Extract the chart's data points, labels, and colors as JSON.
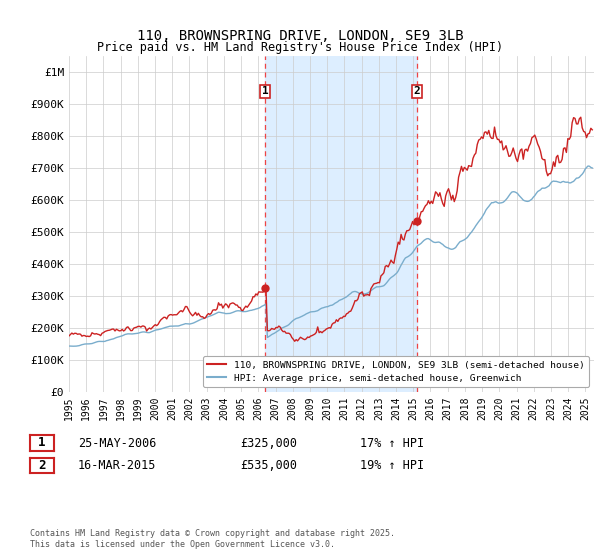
{
  "title": "110, BROWNSPRING DRIVE, LONDON, SE9 3LB",
  "subtitle": "Price paid vs. HM Land Registry's House Price Index (HPI)",
  "xlim_start": 1995.0,
  "xlim_end": 2025.5,
  "ylim": [
    0,
    1050000
  ],
  "yticks": [
    0,
    100000,
    200000,
    300000,
    400000,
    500000,
    600000,
    700000,
    800000,
    900000,
    1000000
  ],
  "ytick_labels": [
    "£0",
    "£100K",
    "£200K",
    "£300K",
    "£400K",
    "£500K",
    "£600K",
    "£700K",
    "£800K",
    "£900K",
    "£1M"
  ],
  "xticks": [
    1995,
    1996,
    1997,
    1998,
    1999,
    2000,
    2001,
    2002,
    2003,
    2004,
    2005,
    2006,
    2007,
    2008,
    2009,
    2010,
    2011,
    2012,
    2013,
    2014,
    2015,
    2016,
    2017,
    2018,
    2019,
    2020,
    2021,
    2022,
    2023,
    2024,
    2025
  ],
  "red_color": "#cc2222",
  "blue_color": "#7aadcc",
  "vline_color": "#ee4444",
  "shade_color": "#ddeeff",
  "purchase1_x": 2006.39,
  "purchase1_y": 325000,
  "purchase2_x": 2015.21,
  "purchase2_y": 535000,
  "legend1": "110, BROWNSPRING DRIVE, LONDON, SE9 3LB (semi-detached house)",
  "legend2": "HPI: Average price, semi-detached house, Greenwich",
  "annotation1_label": "1",
  "annotation2_label": "2",
  "annotation1_date": "25-MAY-2006",
  "annotation1_price": "£325,000",
  "annotation1_hpi": "17% ↑ HPI",
  "annotation2_date": "16-MAR-2015",
  "annotation2_price": "£535,000",
  "annotation2_hpi": "19% ↑ HPI",
  "footer": "Contains HM Land Registry data © Crown copyright and database right 2025.\nThis data is licensed under the Open Government Licence v3.0.",
  "background_color": "#ffffff",
  "grid_color": "#cccccc",
  "box_edge_color": "#cc2222"
}
